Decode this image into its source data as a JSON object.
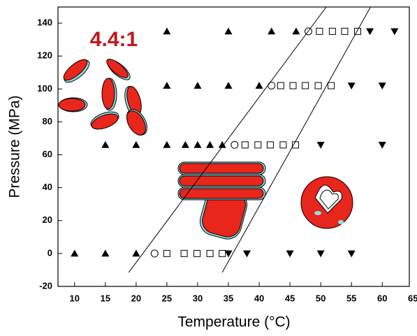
{
  "chart_data": {
    "type": "scatter",
    "annotation": "4.4:1",
    "x_label": "Temperature (°C)",
    "y_label": "Pressure (MPa)",
    "xlim": [
      7.3,
      64.4
    ],
    "ylim": [
      -20,
      149.8
    ],
    "xticks": [
      10,
      15,
      20,
      25,
      30,
      35,
      40,
      45,
      50,
      55,
      60,
      65
    ],
    "yticks": [
      -20,
      0,
      20,
      40,
      60,
      80,
      100,
      120,
      140
    ],
    "series": [
      {
        "marker": "triangle-up",
        "color": "#000000",
        "x": [
          25,
          35,
          42,
          46,
          25,
          30,
          35,
          40,
          15,
          20,
          25,
          28,
          30,
          32,
          34,
          10,
          15,
          20
        ],
        "y": [
          135,
          135,
          135,
          135,
          102,
          102,
          102,
          102,
          66,
          66,
          66,
          66,
          66,
          66,
          66,
          0,
          0,
          0
        ]
      },
      {
        "marker": "circle",
        "color": "#000000",
        "x": [
          48,
          42,
          36,
          23
        ],
        "y": [
          135,
          102,
          66,
          0
        ]
      },
      {
        "marker": "square",
        "color": "#000000",
        "x": [
          49.8,
          51.9,
          53.9,
          56,
          43.5,
          45.5,
          47.5,
          49.6,
          51.7,
          37.7,
          39.8,
          41.8,
          43.9,
          45.9,
          25,
          27.8,
          29.9,
          32,
          34
        ],
        "y": [
          135,
          135,
          135,
          135,
          102,
          102,
          102,
          102,
          102,
          66,
          66,
          66,
          66,
          66,
          0,
          0,
          0,
          0,
          0
        ]
      },
      {
        "marker": "triangle-down",
        "color": "#000000",
        "x": [
          58,
          62,
          55,
          60,
          50,
          60,
          35,
          38,
          45,
          50,
          55
        ],
        "y": [
          135,
          135,
          102,
          102,
          66,
          66,
          0,
          0,
          0,
          0,
          0
        ]
      },
      {
        "marker": "line",
        "color": "#000000",
        "x": [
          18.8,
          50.9
        ],
        "y": [
          -11.5,
          149.8
        ]
      },
      {
        "marker": "line",
        "color": "#000000",
        "x": [
          34,
          58.1
        ],
        "y": [
          -11.5,
          149.8
        ]
      }
    ]
  }
}
